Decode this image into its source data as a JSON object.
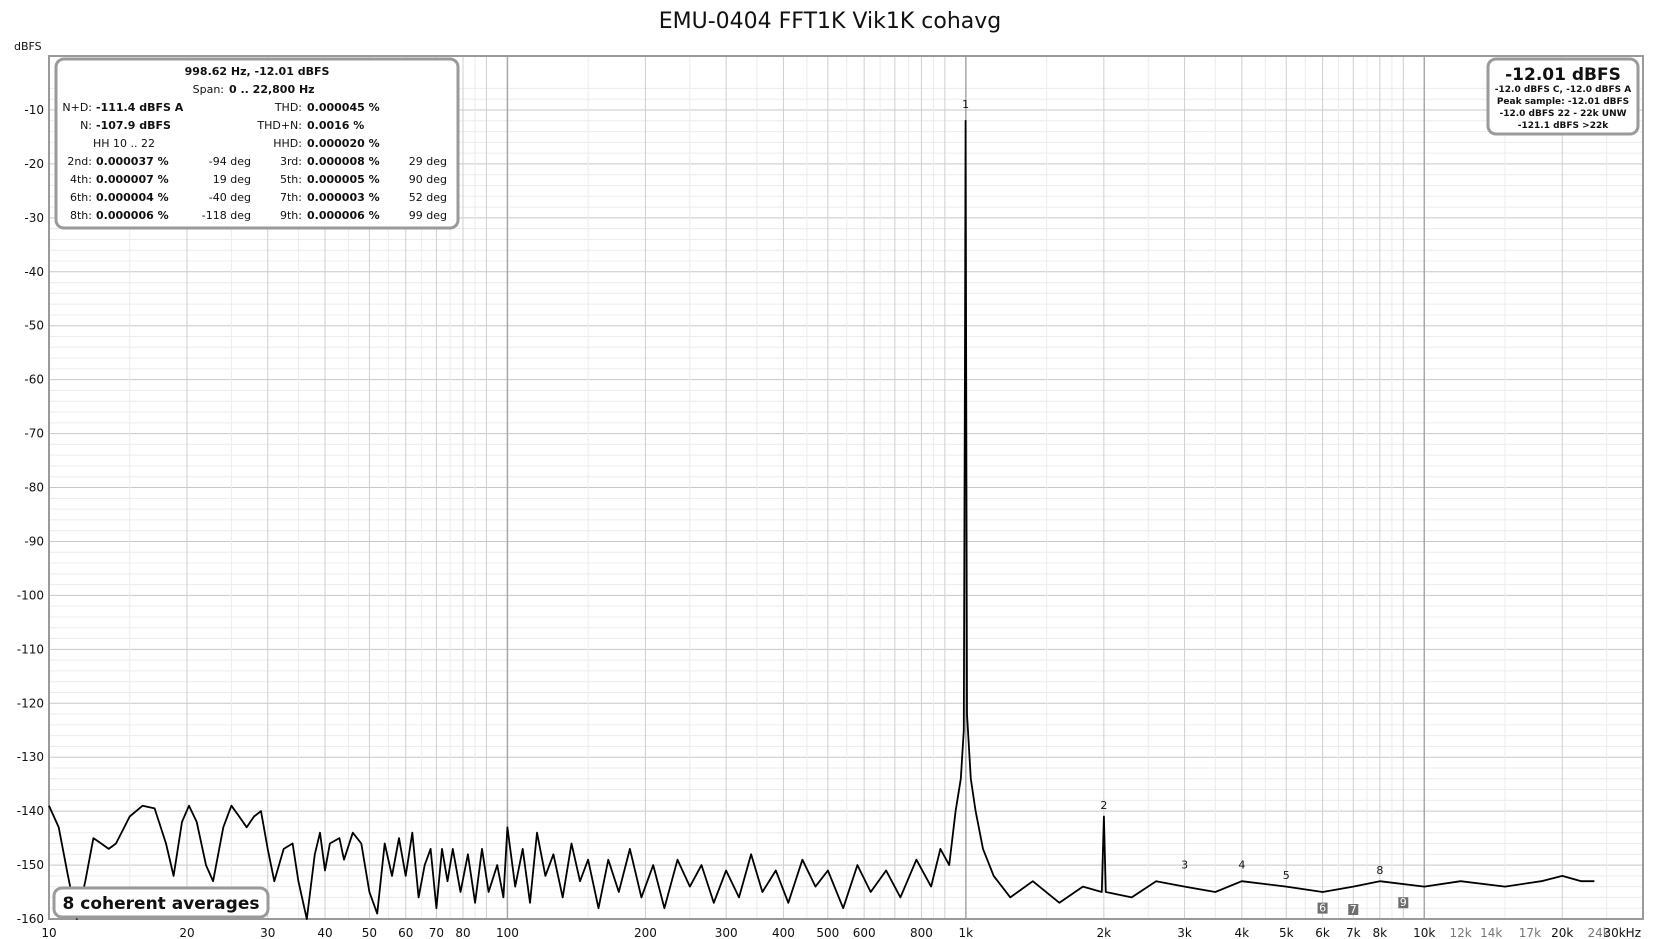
{
  "chart_data": {
    "type": "line",
    "title": "EMU-0404 FFT1K Vik1K cohavg",
    "ylabel": "dBFS",
    "xscale": "log",
    "xlim": [
      10,
      30000
    ],
    "ylim": [
      -160,
      -5
    ],
    "grid": true,
    "y_ticks": [
      "-10",
      "-20",
      "-30",
      "-40",
      "-50",
      "-60",
      "-70",
      "-80",
      "-90",
      "-100",
      "-110",
      "-120",
      "-130",
      "-140",
      "-150",
      "-160"
    ],
    "y_tick_values": [
      -10,
      -20,
      -30,
      -40,
      -50,
      -60,
      -70,
      -80,
      -90,
      -100,
      -110,
      -120,
      -130,
      -140,
      -150,
      -160
    ],
    "x_ticks": [
      {
        "v": 10,
        "t": "10"
      },
      {
        "v": 20,
        "t": "20"
      },
      {
        "v": 30,
        "t": "30"
      },
      {
        "v": 40,
        "t": "40"
      },
      {
        "v": 50,
        "t": "50"
      },
      {
        "v": 60,
        "t": "60"
      },
      {
        "v": 70,
        "t": "70"
      },
      {
        "v": 80,
        "t": "80"
      },
      {
        "v": 100,
        "t": "100"
      },
      {
        "v": 200,
        "t": "200"
      },
      {
        "v": 300,
        "t": "300"
      },
      {
        "v": 400,
        "t": "400"
      },
      {
        "v": 500,
        "t": "500"
      },
      {
        "v": 600,
        "t": "600"
      },
      {
        "v": 800,
        "t": "800"
      },
      {
        "v": 1000,
        "t": "1k"
      },
      {
        "v": 2000,
        "t": "2k"
      },
      {
        "v": 3000,
        "t": "3k"
      },
      {
        "v": 4000,
        "t": "4k"
      },
      {
        "v": 5000,
        "t": "5k"
      },
      {
        "v": 6000,
        "t": "6k"
      },
      {
        "v": 7000,
        "t": "7k"
      },
      {
        "v": 8000,
        "t": "8k"
      },
      {
        "v": 10000,
        "t": "10k"
      },
      {
        "v": 12000,
        "t": "12k",
        "grey": true
      },
      {
        "v": 14000,
        "t": "14k",
        "grey": true
      },
      {
        "v": 17000,
        "t": "17k",
        "grey": true
      },
      {
        "v": 20000,
        "t": "20k"
      },
      {
        "v": 24000,
        "t": "24k",
        "grey": true
      },
      {
        "v": 30000,
        "t": "30kHz"
      }
    ],
    "series": [
      {
        "color": "#000000",
        "points": [
          [
            10,
            -139
          ],
          [
            10.5,
            -143
          ],
          [
            11,
            -152
          ],
          [
            11.5,
            -160
          ],
          [
            12,
            -153
          ],
          [
            12.5,
            -145
          ],
          [
            13,
            -146
          ],
          [
            13.5,
            -147
          ],
          [
            14,
            -146
          ],
          [
            15,
            -141
          ],
          [
            16,
            -139
          ],
          [
            17,
            -139.5
          ],
          [
            18,
            -146
          ],
          [
            18.7,
            -152
          ],
          [
            19.5,
            -142
          ],
          [
            20.2,
            -139
          ],
          [
            21,
            -142
          ],
          [
            22,
            -150
          ],
          [
            22.8,
            -153
          ],
          [
            24,
            -143
          ],
          [
            25,
            -139
          ],
          [
            26,
            -141
          ],
          [
            27,
            -143
          ],
          [
            28,
            -141
          ],
          [
            29,
            -140
          ],
          [
            30,
            -147
          ],
          [
            31,
            -153
          ],
          [
            32.5,
            -147
          ],
          [
            34,
            -146
          ],
          [
            35,
            -153
          ],
          [
            36.5,
            -160
          ],
          [
            38,
            -148
          ],
          [
            39,
            -144
          ],
          [
            40,
            -151
          ],
          [
            41,
            -146
          ],
          [
            43,
            -145
          ],
          [
            44,
            -149
          ],
          [
            46,
            -144
          ],
          [
            48,
            -146
          ],
          [
            50,
            -155
          ],
          [
            52,
            -159
          ],
          [
            54,
            -146
          ],
          [
            56,
            -152
          ],
          [
            58,
            -145
          ],
          [
            60,
            -152
          ],
          [
            62,
            -144
          ],
          [
            64,
            -156
          ],
          [
            66,
            -150
          ],
          [
            68,
            -147
          ],
          [
            70,
            -158
          ],
          [
            72,
            -147
          ],
          [
            74,
            -153
          ],
          [
            76,
            -147
          ],
          [
            79,
            -155
          ],
          [
            82,
            -148
          ],
          [
            85,
            -157
          ],
          [
            88,
            -147
          ],
          [
            91,
            -155
          ],
          [
            95,
            -150
          ],
          [
            98,
            -156
          ],
          [
            100,
            -143
          ],
          [
            104,
            -154
          ],
          [
            108,
            -147
          ],
          [
            112,
            -157
          ],
          [
            116,
            -144
          ],
          [
            121,
            -152
          ],
          [
            126,
            -148
          ],
          [
            132,
            -156
          ],
          [
            138,
            -146
          ],
          [
            144,
            -153
          ],
          [
            150,
            -149
          ],
          [
            158,
            -158
          ],
          [
            166,
            -149
          ],
          [
            175,
            -155
          ],
          [
            185,
            -147
          ],
          [
            196,
            -156
          ],
          [
            208,
            -150
          ],
          [
            220,
            -158
          ],
          [
            235,
            -149
          ],
          [
            250,
            -154
          ],
          [
            265,
            -150
          ],
          [
            282,
            -157
          ],
          [
            300,
            -151
          ],
          [
            320,
            -156
          ],
          [
            340,
            -148
          ],
          [
            360,
            -155
          ],
          [
            385,
            -151
          ],
          [
            410,
            -157
          ],
          [
            440,
            -149
          ],
          [
            470,
            -154
          ],
          [
            500,
            -151
          ],
          [
            540,
            -158
          ],
          [
            580,
            -150
          ],
          [
            620,
            -155
          ],
          [
            670,
            -151
          ],
          [
            720,
            -156
          ],
          [
            780,
            -149
          ],
          [
            840,
            -154
          ],
          [
            880,
            -147
          ],
          [
            920,
            -150
          ],
          [
            950,
            -140
          ],
          [
            975,
            -134
          ],
          [
            990,
            -125
          ],
          [
            995,
            -60
          ],
          [
            998.6,
            -12
          ],
          [
            1002,
            -60
          ],
          [
            1006,
            -122
          ],
          [
            1025,
            -134
          ],
          [
            1050,
            -140
          ],
          [
            1090,
            -147
          ],
          [
            1150,
            -152
          ],
          [
            1250,
            -156
          ],
          [
            1400,
            -153
          ],
          [
            1600,
            -157
          ],
          [
            1800,
            -154
          ],
          [
            1980,
            -155
          ],
          [
            2000,
            -141
          ],
          [
            2020,
            -155
          ],
          [
            2300,
            -156
          ],
          [
            2600,
            -153
          ],
          [
            3000,
            -154
          ],
          [
            3500,
            -155
          ],
          [
            4000,
            -153
          ],
          [
            5000,
            -154
          ],
          [
            6000,
            -155
          ],
          [
            7000,
            -154
          ],
          [
            8000,
            -153
          ],
          [
            10000,
            -154
          ],
          [
            12000,
            -153
          ],
          [
            15000,
            -154
          ],
          [
            18000,
            -153
          ],
          [
            20000,
            -152
          ],
          [
            22000,
            -153
          ],
          [
            23500,
            -153
          ]
        ]
      }
    ],
    "harmonic_markers": [
      {
        "label": "1",
        "freq": 998.6,
        "level": -10
      },
      {
        "label": "2",
        "freq": 2000,
        "level": -140
      },
      {
        "label": "3",
        "freq": 3000,
        "level": -151
      },
      {
        "label": "4",
        "freq": 4000,
        "level": -151
      },
      {
        "label": "5",
        "freq": 5000,
        "level": -153
      },
      {
        "label": "6",
        "freq": 6000,
        "level": -159,
        "boxed": true
      },
      {
        "label": "7",
        "freq": 7000,
        "level": -161,
        "boxed": true
      },
      {
        "label": "8",
        "freq": 8000,
        "level": -152
      },
      {
        "label": "9",
        "freq": 9000,
        "level": -158,
        "boxed": true
      }
    ]
  },
  "info_box": {
    "header": "998.62 Hz, -12.01 dBFS",
    "span_label": "Span:",
    "span_value": "0 .. 22,800 Hz",
    "nd_label": "N+D:",
    "nd_value": "-111.4 dBFS A",
    "thd_label": "THD:",
    "thd_value": "0.000045 %",
    "n_label": "N:",
    "n_value": "-107.9 dBFS",
    "thdn_label": "THD+N:",
    "thdn_value": "0.0016 %",
    "hh_label": "HH 10 .. 22",
    "hhd_label": "HHD:",
    "hhd_value": "0.000020 %",
    "rows": [
      {
        "l1": "2nd:",
        "v1": "0.000037 %",
        "d1": "-94 deg",
        "l2": "3rd:",
        "v2": "0.000008 %",
        "d2": "29 deg"
      },
      {
        "l1": "4th:",
        "v1": "0.000007 %",
        "d1": "19 deg",
        "l2": "5th:",
        "v2": "0.000005 %",
        "d2": "90 deg"
      },
      {
        "l1": "6th:",
        "v1": "0.000004 %",
        "d1": "-40 deg",
        "l2": "7th:",
        "v2": "0.000003 %",
        "d2": "52 deg"
      },
      {
        "l1": "8th:",
        "v1": "0.000006 %",
        "d1": "-118 deg",
        "l2": "9th:",
        "v2": "0.000006 %",
        "d2": "99 deg"
      }
    ]
  },
  "level_box": {
    "main": "-12.01 dBFS",
    "line1": "-12.0 dBFS C, -12.0 dBFS A",
    "line2": "Peak sample: -12.01 dBFS",
    "line3": "-12.0 dBFS 22 - 22k UNW",
    "line4": "-121.1 dBFS >22k"
  },
  "averages_label": "8 coherent averages"
}
